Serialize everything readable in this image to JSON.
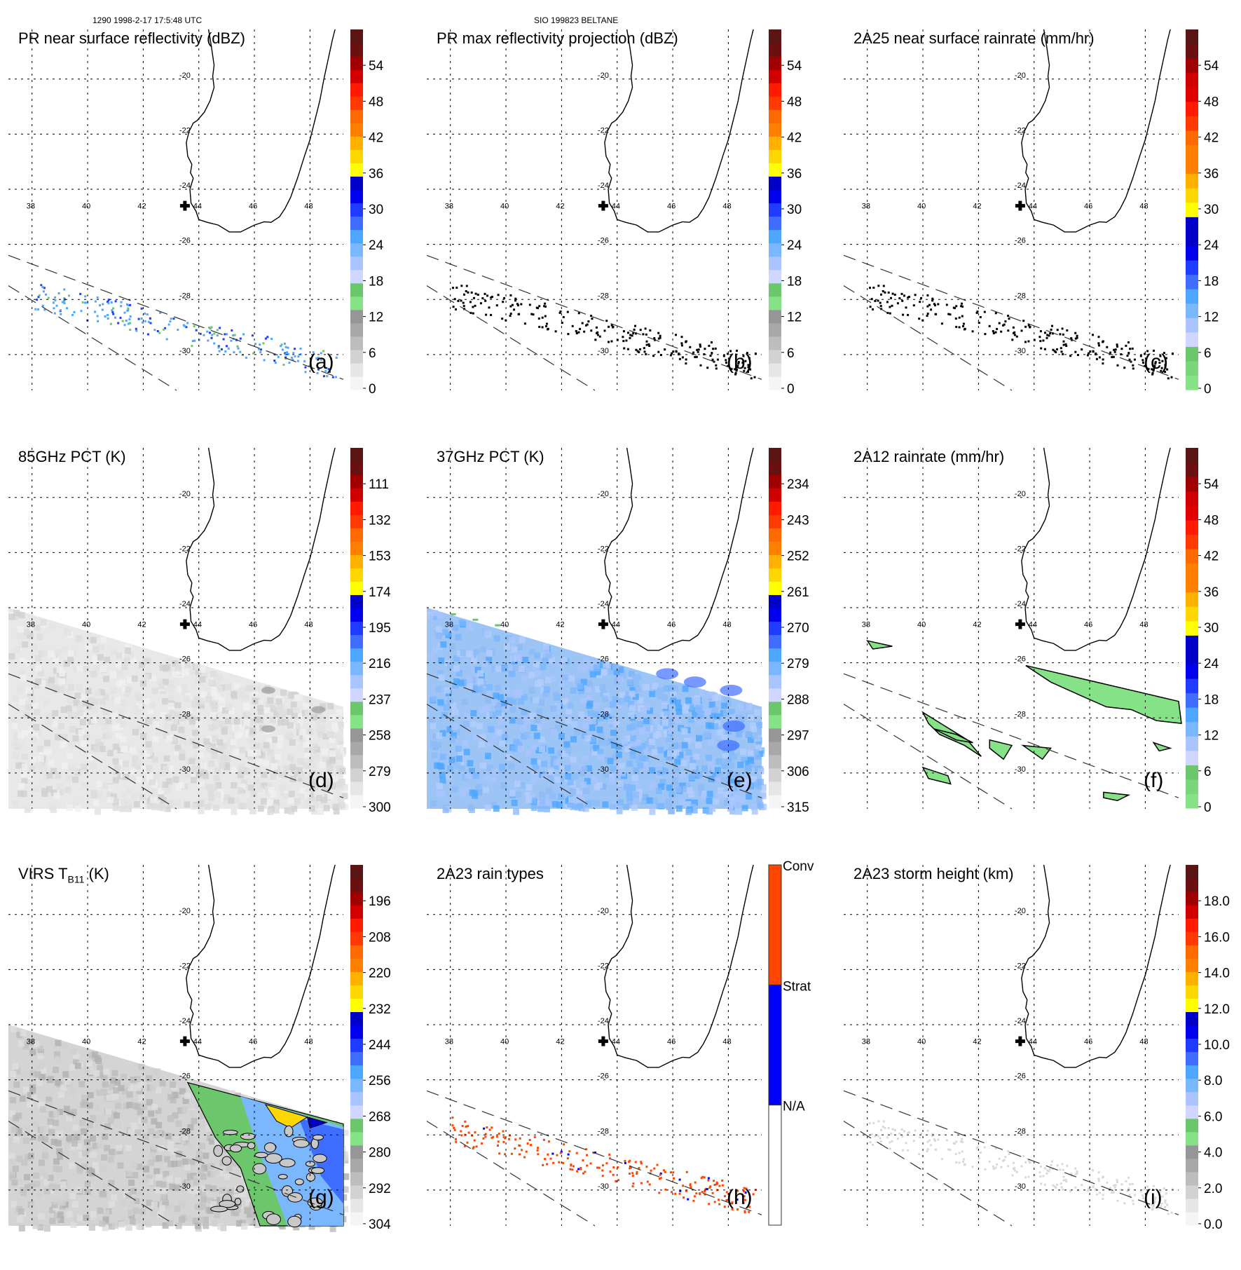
{
  "header": {
    "left": "1290 1998-2-17 17:5:48 UTC",
    "center": "SIO 199823 BELTANE"
  },
  "map": {
    "lon_ticks": [
      "38",
      "40",
      "42",
      "44",
      "46",
      "48"
    ],
    "lat_ticks": [
      "-20",
      "-22",
      "-24",
      "-26",
      "-28",
      "-30"
    ],
    "site_marker": "cross-marker",
    "site_lon": 43.5,
    "site_lat": -24.6
  },
  "colors": {
    "rainbow": [
      "#f5f5f5",
      "#e6e6e6",
      "#d2d2d2",
      "#bdbdbd",
      "#a8a8a8",
      "#969696",
      "#86e286",
      "#6cc76c",
      "#cfd6ff",
      "#a9c4ff",
      "#7ab7ff",
      "#4da6ff",
      "#3f6dff",
      "#1f3bff",
      "#0000ee",
      "#0000c8",
      "#ffff00",
      "#ffd700",
      "#ffb000",
      "#ff8000",
      "#ff6a00",
      "#ff3a00",
      "#ff1a00",
      "#d00000",
      "#a00000",
      "#6b1010",
      "#5a1515"
    ],
    "conv": "#ff4500",
    "strat": "#0000ff",
    "na": "#ffffff"
  },
  "panels": [
    {
      "id": "a",
      "title": "PR near surface reflectivity (dBZ)",
      "label": "(a)",
      "colorbar_type": "rainbow",
      "colorbar_ticks": [
        "0",
        "6",
        "12",
        "18",
        "24",
        "30",
        "36",
        "42",
        "48",
        "54"
      ],
      "field": "pr_dots_blue"
    },
    {
      "id": "b",
      "title": "PR max reflectivity projection (dBZ)",
      "label": "(b)",
      "colorbar_type": "rainbow",
      "colorbar_ticks": [
        "0",
        "6",
        "12",
        "18",
        "24",
        "30",
        "36",
        "42",
        "48",
        "54"
      ],
      "field": "pr_dots_black"
    },
    {
      "id": "c",
      "title": "2A25 near surface rainrate (mm/hr)",
      "label": "(c)",
      "colorbar_type": "rainbow_green",
      "colorbar_ticks": [
        "0",
        "6",
        "12",
        "18",
        "24",
        "30",
        "36",
        "42",
        "48",
        "54"
      ],
      "field": "pr_dots_black"
    },
    {
      "id": "d",
      "title": "85GHz PCT (K)",
      "label": "(d)",
      "colorbar_type": "rainbow",
      "colorbar_ticks": [
        "300",
        "279",
        "258",
        "237",
        "216",
        "195",
        "174",
        "153",
        "132",
        "111"
      ],
      "field": "swath_gray"
    },
    {
      "id": "e",
      "title": "37GHz PCT (K)",
      "label": "(e)",
      "colorbar_type": "rainbow",
      "colorbar_ticks": [
        "315",
        "306",
        "297",
        "288",
        "279",
        "270",
        "261",
        "252",
        "243",
        "234"
      ],
      "field": "swath_blue"
    },
    {
      "id": "f",
      "title": "2A12 rainrate (mm/hr)",
      "label": "(f)",
      "colorbar_type": "rainbow_green",
      "colorbar_ticks": [
        "0",
        "6",
        "12",
        "18",
        "24",
        "30",
        "36",
        "42",
        "48",
        "54"
      ],
      "field": "green_blobs"
    },
    {
      "id": "g",
      "title": "VIRS T",
      "title_sub": "B11",
      "title_suffix": " (K)",
      "label": "(g)",
      "colorbar_type": "rainbow",
      "colorbar_ticks": [
        "304",
        "292",
        "280",
        "268",
        "256",
        "244",
        "232",
        "220",
        "208",
        "196"
      ],
      "field": "virs"
    },
    {
      "id": "h",
      "title": "2A23 rain types",
      "label": "(h)",
      "colorbar_type": "categorical",
      "colorbar_ticks": [
        "N/A",
        "Strat",
        "Conv"
      ],
      "field": "rain_types"
    },
    {
      "id": "i",
      "title": "2A23 storm height (km)",
      "label": "(i)",
      "colorbar_type": "rainbow",
      "colorbar_ticks": [
        "0.0",
        "2.0",
        "4.0",
        "6.0",
        "8.0",
        "10.0",
        "12.0",
        "14.0",
        "16.0",
        "18.0"
      ],
      "field": "gray_dots"
    }
  ]
}
